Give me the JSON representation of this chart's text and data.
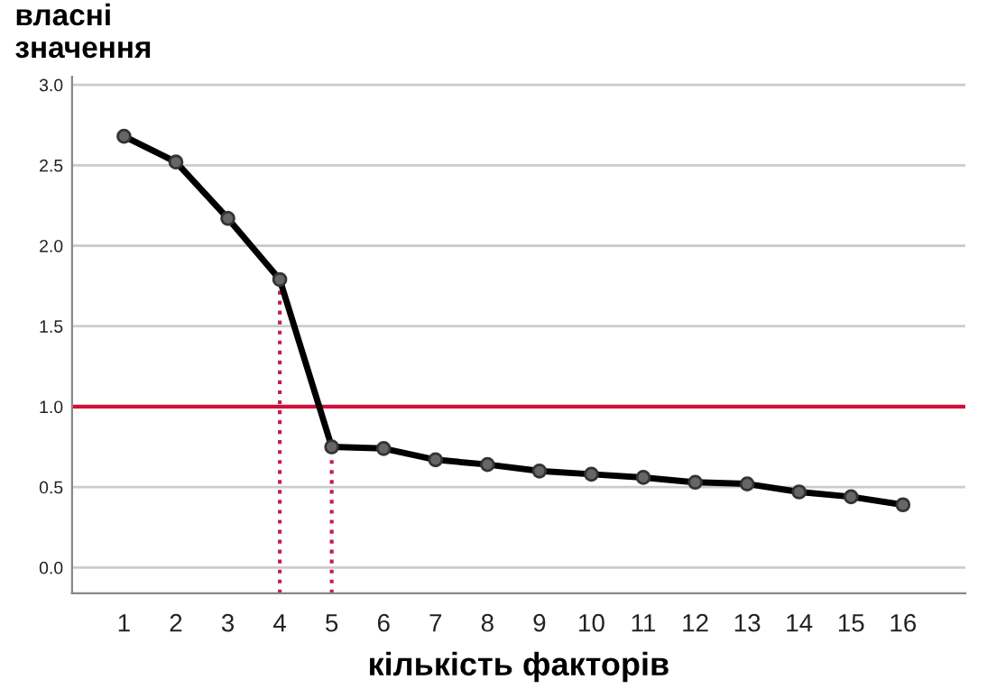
{
  "chart_data": {
    "type": "line",
    "ylabel": "власні\nзначення",
    "xlabel": "кількість факторів",
    "x": [
      1,
      2,
      3,
      4,
      5,
      6,
      7,
      8,
      9,
      10,
      11,
      12,
      13,
      14,
      15,
      16
    ],
    "series": [
      {
        "color": "#000000",
        "marker": "circle",
        "line_style": "solid",
        "values": [
          2.68,
          2.52,
          2.17,
          1.79,
          0.75,
          0.74,
          0.67,
          0.64,
          0.6,
          0.58,
          0.56,
          0.53,
          0.52,
          0.47,
          0.44,
          0.39
        ]
      }
    ],
    "ref_lines": [
      {
        "axis": "y",
        "value": 1.0,
        "color": "#d0103a",
        "line_style": "solid"
      },
      {
        "axis": "x",
        "value": 4,
        "color": "#c0204a",
        "line_style": "dotted"
      },
      {
        "axis": "x",
        "value": 5,
        "color": "#c0204a",
        "line_style": "dotted"
      }
    ],
    "xlim": [
      0,
      17.2
    ],
    "ylim": [
      -0.16,
      3.05
    ],
    "xticks": [
      1,
      2,
      3,
      4,
      5,
      6,
      7,
      8,
      9,
      10,
      11,
      12,
      13,
      14,
      15,
      16
    ],
    "yticks": [
      {
        "value": 0,
        "label": "0.0"
      },
      {
        "value": 0.5,
        "label": "0.5"
      },
      {
        "value": 1,
        "label": "1.0"
      },
      {
        "value": 1.5,
        "label": "1.5"
      },
      {
        "value": 2,
        "label": "2.0"
      },
      {
        "value": 2.5,
        "label": "2.5"
      },
      {
        "value": 3,
        "label": "3.0"
      }
    ],
    "grid": "y",
    "legend": false
  }
}
